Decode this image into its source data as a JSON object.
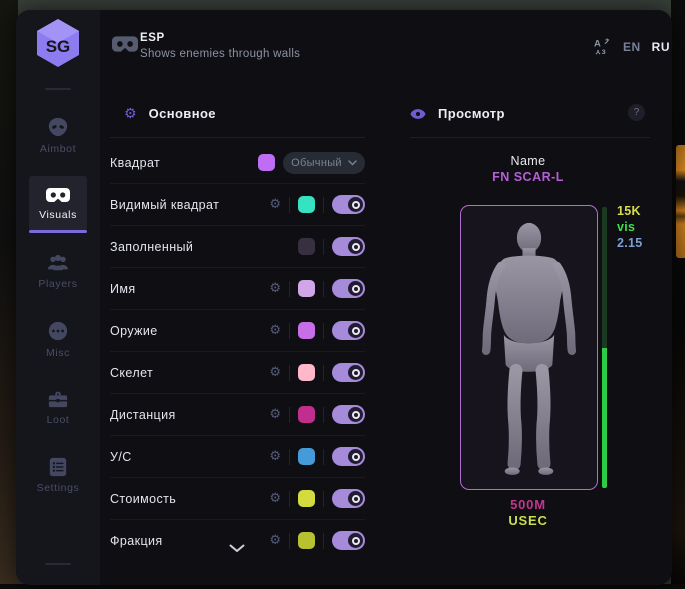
{
  "sidebar": {
    "logo_text": "SG",
    "items": [
      {
        "label": "Aimbot",
        "icon": "alien-icon",
        "active": false
      },
      {
        "label": "Visuals",
        "icon": "goggles-icon",
        "active": true
      },
      {
        "label": "Players",
        "icon": "players-icon",
        "active": false
      },
      {
        "label": "Misc",
        "icon": "ellipsis-icon",
        "active": false
      },
      {
        "label": "Loot",
        "icon": "toolbox-icon",
        "active": false
      },
      {
        "label": "Settings",
        "icon": "settings-icon",
        "active": false
      }
    ]
  },
  "header": {
    "title": "ESP",
    "subtitle": "Shows enemies through walls",
    "languages": [
      {
        "code": "EN",
        "active": false
      },
      {
        "code": "RU",
        "active": true
      }
    ]
  },
  "main": {
    "section_title": "Основное",
    "rows": [
      {
        "label": "Квадрат",
        "gear": false,
        "swatch": "#c06df5",
        "control": "dropdown",
        "value": "Обычный"
      },
      {
        "label": "Видимый квадрат",
        "gear": true,
        "swatch": "#35e2c1",
        "control": "toggle",
        "on": true
      },
      {
        "label": "Заполненный",
        "gear": false,
        "swatch": "#363040",
        "control": "toggle",
        "on": true
      },
      {
        "label": "Имя",
        "gear": true,
        "swatch": "#d0a6e8",
        "control": "toggle",
        "on": true
      },
      {
        "label": "Оружие",
        "gear": true,
        "swatch": "#c76ee8",
        "control": "toggle",
        "on": true
      },
      {
        "label": "Скелет",
        "gear": true,
        "swatch": "#ffb7c9",
        "control": "toggle",
        "on": true
      },
      {
        "label": "Дистанция",
        "gear": true,
        "swatch": "#c12e8e",
        "control": "toggle",
        "on": true
      },
      {
        "label": "У/С",
        "gear": true,
        "swatch": "#459bd9",
        "control": "toggle",
        "on": true
      },
      {
        "label": "Стоимость",
        "gear": true,
        "swatch": "#d3dc3c",
        "control": "toggle",
        "on": true
      },
      {
        "label": "Фракция",
        "gear": true,
        "swatch": "#b6c22f",
        "control": "toggle",
        "on": true
      }
    ]
  },
  "preview": {
    "section_title": "Просмотр",
    "help_label": "?",
    "name_label": "Name",
    "weapon": "FN SCAR-L",
    "info_lines": [
      {
        "text": "15K",
        "color": "#d8de49"
      },
      {
        "text": "vis",
        "color": "#3fdd4d"
      },
      {
        "text": "2.15",
        "color": "#7e9fd8"
      }
    ],
    "health_pct": 50,
    "distance": "500M",
    "faction": "USEC"
  },
  "colors": {
    "accent": "#7c69da",
    "toggle_on": "#a78bdb",
    "health_full": "#2ecb45",
    "health_empty": "#1c3a22",
    "weapon_text": "#b55fd6",
    "distance_text": "#c2368f",
    "faction_text": "#ccdd4d"
  }
}
